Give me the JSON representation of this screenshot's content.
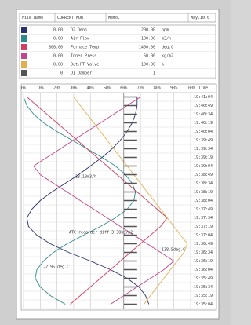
{
  "header": {
    "file_label": "File Name",
    "file_name": "CURRENT.MDR",
    "memo_label": "Memo.",
    "date": "May.10.0"
  },
  "channels": [
    {
      "low": "0.00",
      "name": "O2 Dens",
      "high": "200.00",
      "unit": "ppm",
      "color": "#2a2f6e",
      "trace": [
        68,
        68,
        67,
        65,
        62,
        58,
        53,
        47,
        40,
        33,
        25,
        17,
        10,
        5,
        2,
        3,
        8,
        16,
        27,
        40,
        52,
        62,
        69,
        73,
        75
      ]
    },
    {
      "low": "0.00",
      "name": "Air Flow",
      "high": "100.00",
      "unit": "m3/h",
      "color": "#2f8a8f",
      "trace": [
        0,
        2,
        6,
        12,
        20,
        29,
        38,
        47,
        55,
        61,
        65,
        67,
        66,
        62,
        55,
        46,
        36,
        26,
        18,
        12,
        8,
        7,
        10,
        16,
        25
      ]
    },
    {
      "low": "800.00",
      "name": "Furnace Temp",
      "high": "1400.00",
      "unit": "deg.C",
      "color": "#d04060",
      "trace": [
        2,
        8,
        14,
        20,
        26,
        32,
        38,
        44,
        50,
        56,
        62,
        68,
        74,
        80,
        86,
        82,
        76,
        70,
        64,
        58,
        52,
        46,
        40,
        34,
        28
      ]
    },
    {
      "low": "0.00",
      "name": "Inner Press",
      "high": "50.00",
      "unit": "kg/m2",
      "color": "#c2448a",
      "trace": [
        70,
        62,
        54,
        46,
        38,
        30,
        22,
        14,
        6,
        10,
        18,
        26,
        34,
        42,
        50,
        58,
        66,
        74,
        82,
        90,
        84,
        76,
        68,
        60,
        52
      ]
    },
    {
      "low": "0.00",
      "name": "Out.PT Valve",
      "high": "100.00",
      "unit": "%",
      "color": "#e0b050",
      "trace": [
        30,
        34,
        38,
        42,
        46,
        50,
        54,
        58,
        62,
        66,
        70,
        74,
        78,
        82,
        86,
        90,
        94,
        98,
        96,
        92,
        88,
        84,
        80,
        76,
        72
      ]
    },
    {
      "low": "0",
      "name": "DI Damper",
      "high": "1",
      "unit": "",
      "color": "#555555",
      "trace": [
        1,
        1,
        1,
        1,
        1,
        1,
        1,
        1,
        1,
        1,
        1,
        1,
        1,
        1,
        1,
        1,
        1,
        1,
        1,
        1,
        1,
        1,
        1,
        1,
        1
      ]
    }
  ],
  "scale": [
    "0%",
    "10%",
    "20%",
    "30%",
    "40%",
    "50%",
    "60%",
    "70%",
    "80%",
    "90%",
    "100%"
  ],
  "time_label": "Time",
  "times": [
    "19:41:04",
    "19:40:49",
    "19:40:34",
    "19:40:19",
    "19:40:04",
    "19:39:49",
    "19:39:34",
    "19:39:19",
    "19:39:04",
    "19:38:49",
    "19:38:34",
    "19:38:19",
    "19:38:04",
    "19:37:49",
    "19:37:34",
    "19:37:19",
    "19:37:04",
    "19:36:49",
    "19:36:34",
    "19:36:19",
    "19:36:04",
    "19:35:49",
    "19:35:34",
    "19:35:19",
    "19:35:04"
  ],
  "annotations": [
    "23.10m3/h",
    "ATC recorder diff 3.38kg/m2",
    "138.5deg.C",
    "-2.95 deg.C"
  ]
}
